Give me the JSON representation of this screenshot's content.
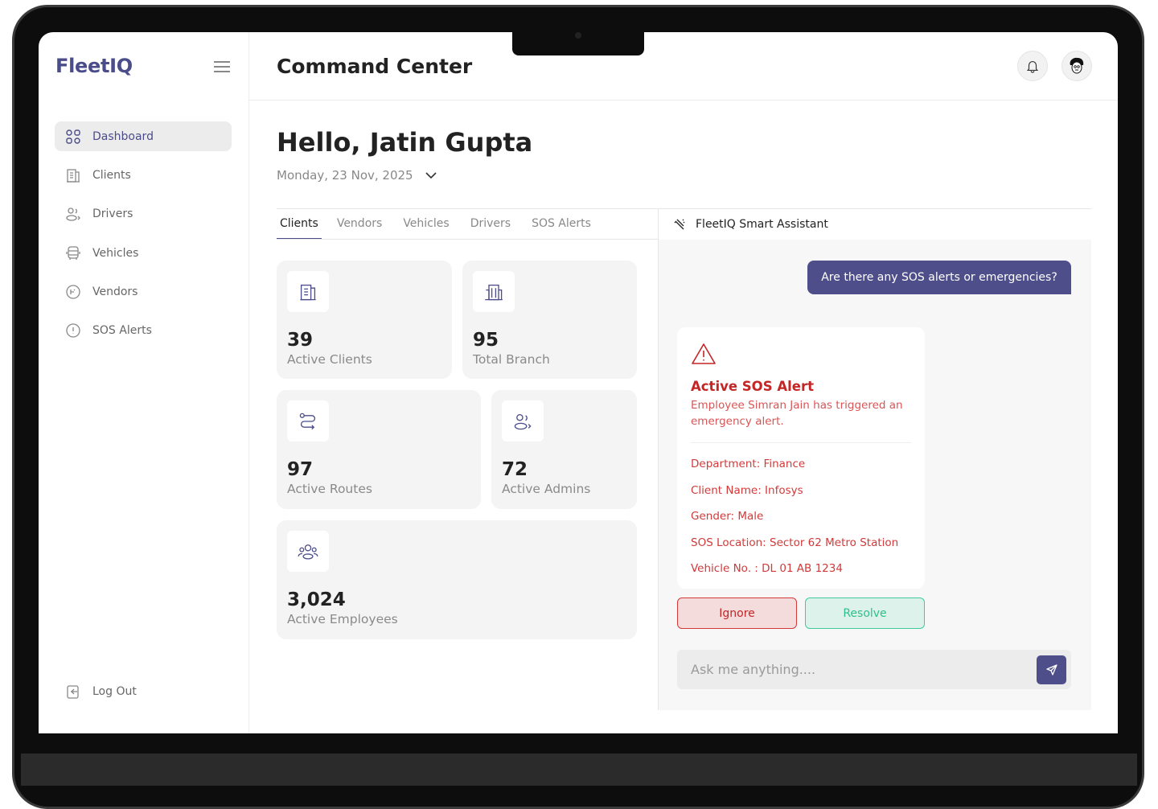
{
  "app": {
    "logo": "FleetIQ",
    "header_title": "Command Center"
  },
  "sidebar": {
    "items": [
      {
        "label": "Dashboard",
        "icon": "grid-icon",
        "active": true
      },
      {
        "label": "Clients",
        "icon": "building-icon"
      },
      {
        "label": "Drivers",
        "icon": "users-icon"
      },
      {
        "label": "Vehicles",
        "icon": "bus-icon"
      },
      {
        "label": "Vendors",
        "icon": "vendor-icon"
      },
      {
        "label": "SOS Alerts",
        "icon": "alert-circle-icon"
      }
    ],
    "logout": "Log Out"
  },
  "greeting": {
    "hello": "Hello, Jatin Gupta",
    "date": "Monday, 23 Nov, 2025"
  },
  "tabs": [
    "Clients",
    "Vendors",
    "Vehicles",
    "Drivers",
    "SOS Alerts"
  ],
  "stats": [
    {
      "value": "39",
      "label": "Active Clients",
      "icon": "building-icon"
    },
    {
      "value": "95",
      "label": "Total Branch",
      "icon": "office-icon"
    },
    {
      "value": "97",
      "label": "Active Routes",
      "icon": "route-icon"
    },
    {
      "value": "72",
      "label": "Active Admins",
      "icon": "users-icon"
    },
    {
      "value": "3,024",
      "label": "Active Employees",
      "icon": "group-icon"
    }
  ],
  "assistant": {
    "title": "FleetIQ Smart Assistant",
    "user_message": "Are there any SOS alerts or emergencies?",
    "alert": {
      "title": "Active SOS Alert",
      "description": "Employee Simran Jain has triggered an emergency alert.",
      "fields": [
        "Department: Finance",
        "Client Name: Infosys",
        "Gender: Male",
        "SOS Location: Sector 62 Metro Station",
        "Vehicle No. : DL 01 AB 1234"
      ]
    },
    "ignore": "Ignore",
    "resolve": "Resolve",
    "placeholder": "Ask me anything...."
  },
  "colors": {
    "brand": "#4b4c8a",
    "alert": "#c42525",
    "resolve": "#2fbf8c"
  }
}
